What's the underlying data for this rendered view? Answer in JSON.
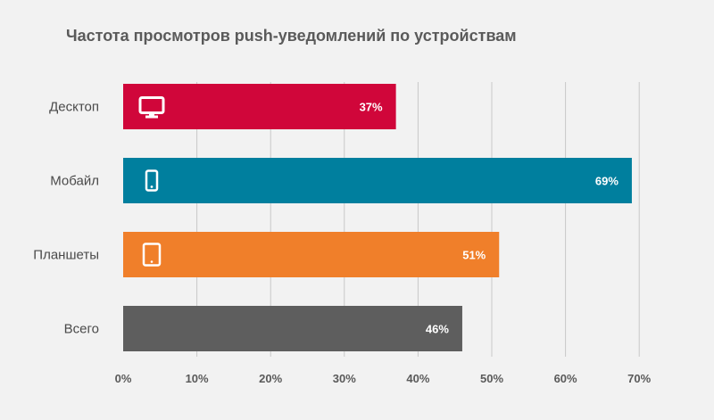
{
  "chart_data": {
    "type": "bar",
    "orientation": "horizontal",
    "title": "Частота просмотров push-уведомлений по устройствам",
    "xlabel": "",
    "ylabel": "",
    "categories": [
      "Десктоп",
      "Мобайл",
      "Планшеты",
      "Всего"
    ],
    "values": [
      37,
      69,
      51,
      46
    ],
    "value_labels": [
      "37%",
      "69%",
      "51%",
      "46%"
    ],
    "bar_colors": [
      "#d0063a",
      "#007f9e",
      "#f07f2a",
      "#5e5e5e"
    ],
    "bar_icons": [
      "desktop-icon",
      "smartphone-icon",
      "tablet-icon",
      null
    ],
    "xlim": [
      0,
      70
    ],
    "x_ticks": [
      0,
      10,
      20,
      30,
      40,
      50,
      60,
      70
    ],
    "x_tick_labels": [
      "0%",
      "10%",
      "20%",
      "30%",
      "40%",
      "50%",
      "60%",
      "70%"
    ],
    "grid": true,
    "legend": "none"
  }
}
